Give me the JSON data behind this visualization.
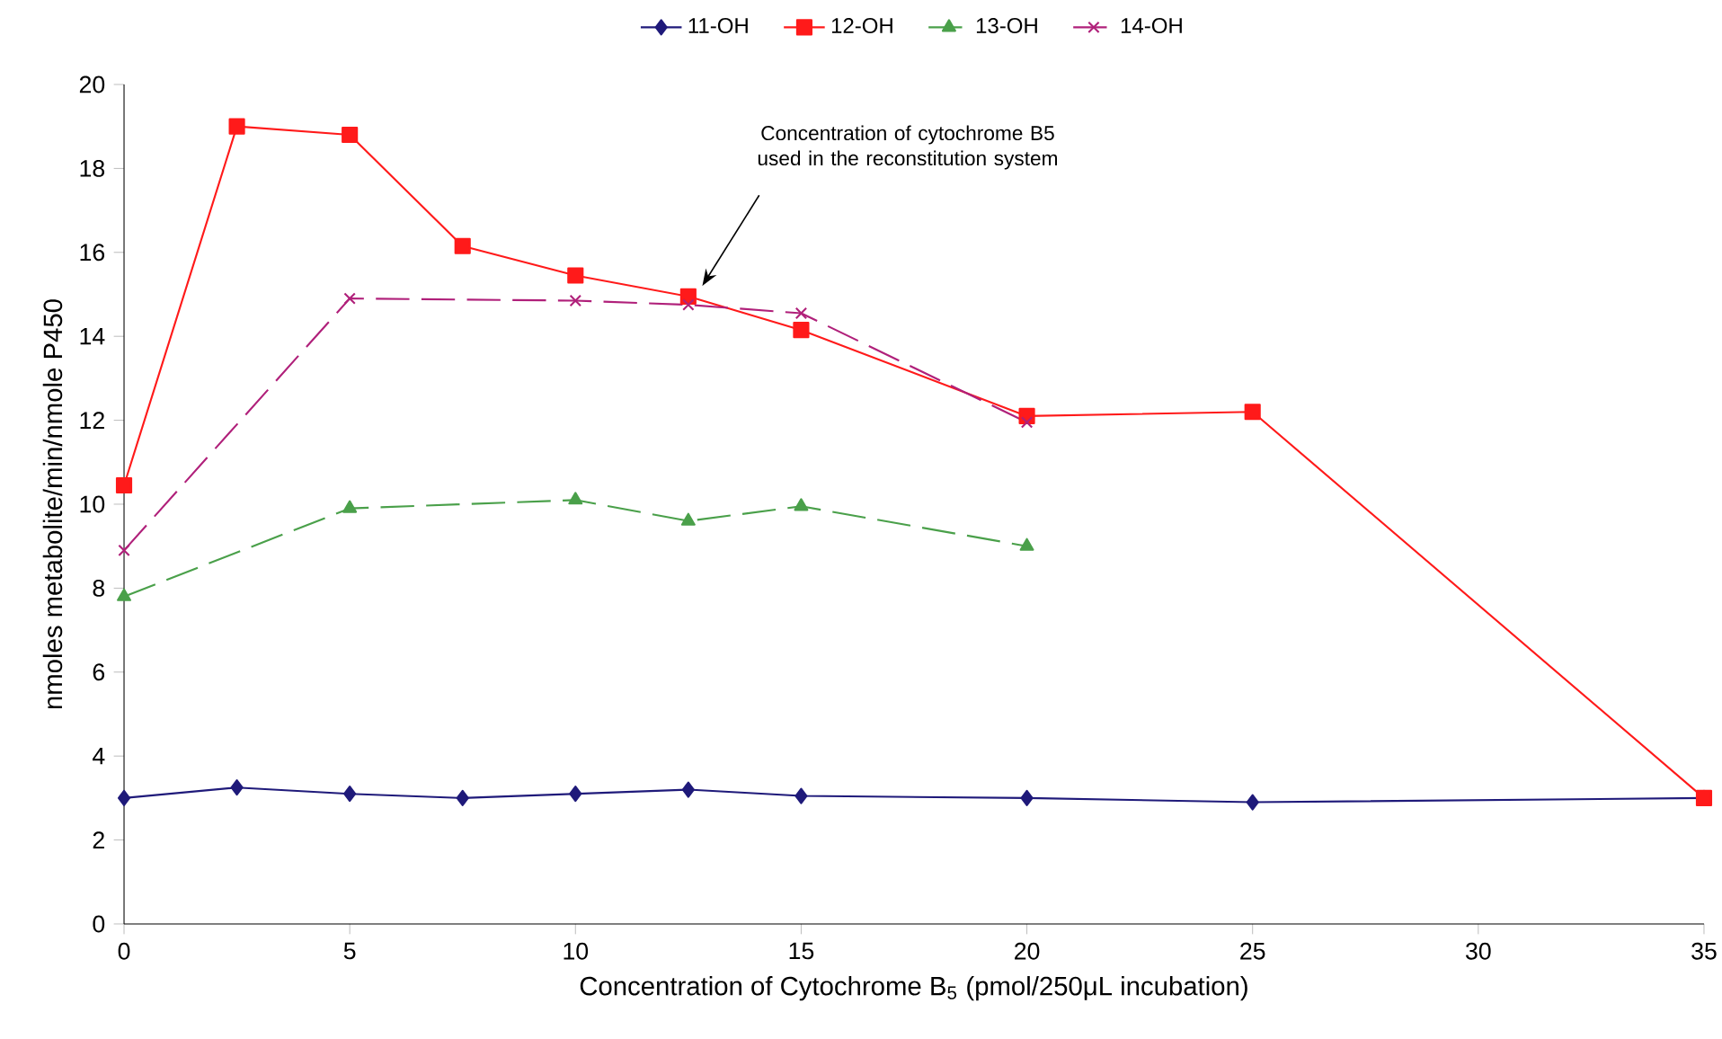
{
  "chart_data": {
    "type": "line",
    "xlabel": "Concentration of Cytochrome B$_{5}$ (pmol/250μL incubation)",
    "ylabel": "nmoles metabolite/min/nmole P450",
    "xlim": [
      0,
      35
    ],
    "ylim": [
      0,
      20
    ],
    "xticks": [
      0,
      5,
      10,
      15,
      20,
      25,
      30,
      35
    ],
    "yticks": [
      0,
      2,
      4,
      6,
      8,
      10,
      12,
      14,
      16,
      18,
      20
    ],
    "grid": false,
    "legend": "top",
    "annotations": [
      "Concentration of cytochrome B5 used in the reconstitution system"
    ],
    "series": [
      {
        "name": "11-OH",
        "color": "#1f1a7a",
        "marker": "diamond",
        "line_style": "solid",
        "x": [
          0,
          2.5,
          5,
          7.5,
          10,
          12.5,
          15,
          20,
          25,
          35
        ],
        "values": [
          3.0,
          3.25,
          3.1,
          3.0,
          3.1,
          3.2,
          3.05,
          3.0,
          2.9,
          3.0
        ]
      },
      {
        "name": "12-OH",
        "color": "#ff1a1a",
        "marker": "square",
        "line_style": "solid",
        "x": [
          0,
          2.5,
          5,
          7.5,
          10,
          12.5,
          15,
          20,
          25,
          35
        ],
        "values": [
          10.45,
          19.0,
          18.8,
          16.15,
          15.45,
          14.95,
          14.15,
          12.1,
          12.2,
          3.0
        ]
      },
      {
        "name": "13-OH",
        "color": "#4aa04a",
        "marker": "triangle",
        "line_style": "dashed",
        "x": [
          0,
          5,
          10,
          12.5,
          15,
          20
        ],
        "values": [
          7.8,
          9.9,
          10.1,
          9.6,
          9.95,
          9.0
        ]
      },
      {
        "name": "14-OH",
        "color": "#b0207a",
        "marker": "cross",
        "line_style": "dashed",
        "x": [
          0,
          5,
          10,
          12.5,
          15,
          20
        ],
        "values": [
          8.9,
          14.9,
          14.85,
          14.75,
          14.55,
          11.95
        ]
      }
    ]
  }
}
